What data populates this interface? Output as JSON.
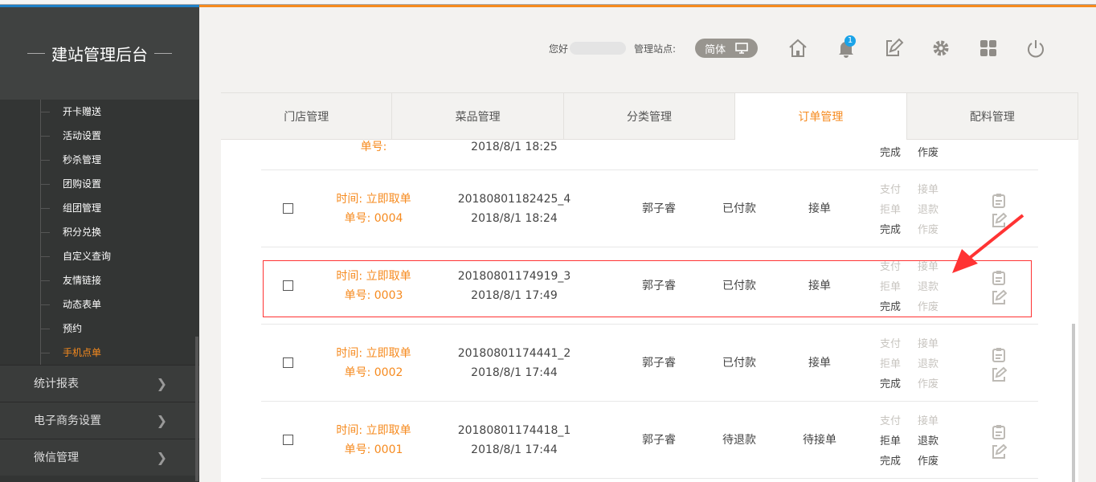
{
  "brand": "建站管理后台",
  "sidebar": {
    "subitems": [
      "开卡赠送",
      "活动设置",
      "秒杀管理",
      "团购设置",
      "组团管理",
      "积分兑换",
      "自定义查询",
      "友情链接",
      "动态表单",
      "预约",
      "手机点单"
    ],
    "active": "手机点单",
    "groups": [
      "统计报表",
      "电子商务设置",
      "微信管理"
    ]
  },
  "header": {
    "greeting": "您好",
    "site_label": "管理站点:",
    "lang": "简体",
    "notif_count": "1",
    "icons": [
      "home-icon",
      "bell-icon",
      "edit-icon",
      "gear-icon",
      "grid-icon",
      "power-icon"
    ]
  },
  "tabs": [
    "门店管理",
    "菜品管理",
    "分类管理",
    "订单管理",
    "配料管理"
  ],
  "active_tab": "订单管理",
  "partial_row": {
    "no": "单号:",
    "date": "2018/8/1 18:25",
    "ops": [
      "完成",
      "作废"
    ]
  },
  "rows": [
    {
      "time": "时间: 立即取单",
      "no": "单号: 0004",
      "id": "20180801182425_4",
      "date": "2018/8/1 18:24",
      "name": "郭子睿",
      "pay": "已付款",
      "status": "接单",
      "ops": [
        "支付",
        "接单",
        "拒单",
        "退款",
        "完成",
        "作废"
      ],
      "enabled": [
        0,
        0,
        0,
        0,
        1,
        0
      ]
    },
    {
      "time": "时间: 立即取单",
      "no": "单号: 0003",
      "id": "20180801174919_3",
      "date": "2018/8/1 17:49",
      "name": "郭子睿",
      "pay": "已付款",
      "status": "接单",
      "ops": [
        "支付",
        "接单",
        "拒单",
        "退款",
        "完成",
        "作废"
      ],
      "enabled": [
        0,
        0,
        0,
        0,
        1,
        0
      ]
    },
    {
      "time": "时间: 立即取单",
      "no": "单号: 0002",
      "id": "20180801174441_2",
      "date": "2018/8/1 17:44",
      "name": "郭子睿",
      "pay": "已付款",
      "status": "接单",
      "ops": [
        "支付",
        "接单",
        "拒单",
        "退款",
        "完成",
        "作废"
      ],
      "enabled": [
        0,
        0,
        0,
        0,
        1,
        0
      ]
    },
    {
      "time": "时间: 立即取单",
      "no": "单号: 0001",
      "id": "20180801174418_1",
      "date": "2018/8/1 17:44",
      "name": "郭子睿",
      "pay": "待退款",
      "status": "待接单",
      "ops": [
        "支付",
        "接单",
        "拒单",
        "退款",
        "完成",
        "作废"
      ],
      "enabled": [
        0,
        0,
        1,
        1,
        1,
        1
      ]
    }
  ],
  "colors": {
    "accent": "#f68a1e",
    "sidebar": "#333534",
    "highlight": "#ff3333"
  }
}
